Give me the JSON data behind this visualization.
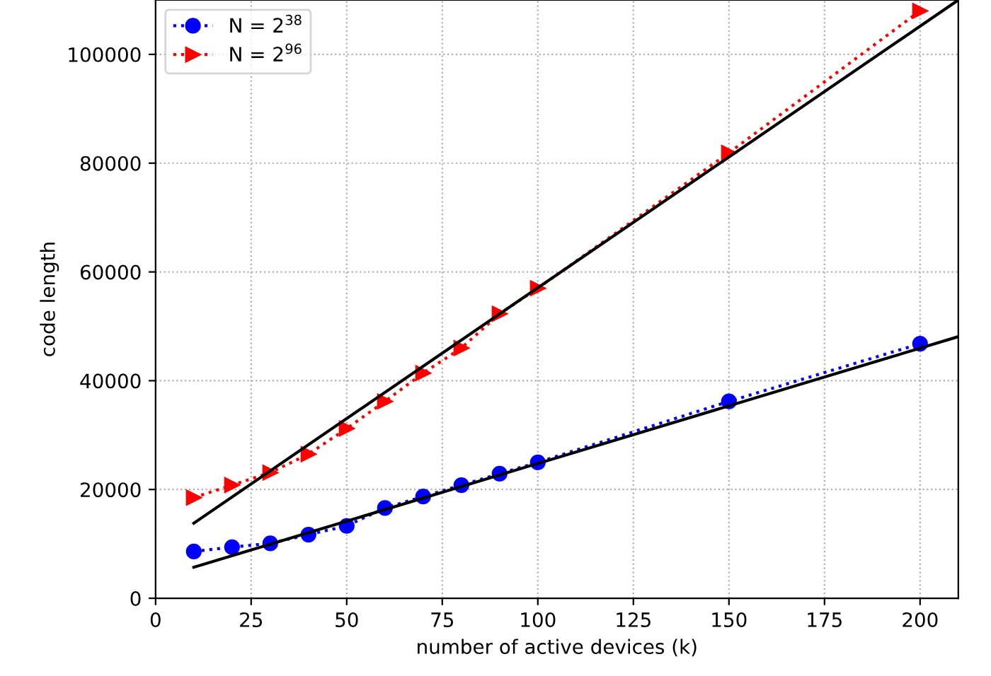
{
  "chart_data": {
    "type": "line",
    "xlabel": "number of active devices (k)",
    "ylabel": "code length",
    "xlim": [
      0,
      210
    ],
    "xticks": [
      0,
      25,
      50,
      75,
      100,
      125,
      150,
      175,
      200
    ],
    "ylim": [
      0,
      110000
    ],
    "yticks": [
      0,
      20000,
      40000,
      60000,
      80000,
      100000
    ],
    "grid": true,
    "legend": "top left",
    "series": [
      {
        "name": "N = 2$^{38}$",
        "color": "#0000ff",
        "marker": "circle",
        "line_style": "dotted",
        "x": [
          10,
          20,
          30,
          40,
          50,
          60,
          70,
          80,
          90,
          100,
          150,
          200
        ],
        "values": [
          8600,
          9400,
          10100,
          11700,
          13300,
          16600,
          18700,
          20800,
          22900,
          25000,
          36200,
          46800
        ]
      },
      {
        "name": "N = 2$^{96}$",
        "color": "#ff0000",
        "marker": "triangle",
        "line_style": "dotted",
        "x": [
          10,
          20,
          30,
          40,
          50,
          60,
          70,
          80,
          90,
          100,
          150,
          200
        ],
        "values": [
          18500,
          20800,
          23100,
          26500,
          31200,
          36200,
          41400,
          46000,
          52300,
          57000,
          81900,
          108000
        ]
      },
      {
        "color": "#000000",
        "marker": "none",
        "line_style": "solid",
        "x": [
          10,
          210
        ],
        "values": [
          5700,
          48100
        ]
      },
      {
        "color": "#000000",
        "marker": "none",
        "line_style": "solid",
        "x": [
          10,
          210
        ],
        "values": [
          13800,
          110000
        ]
      }
    ]
  }
}
